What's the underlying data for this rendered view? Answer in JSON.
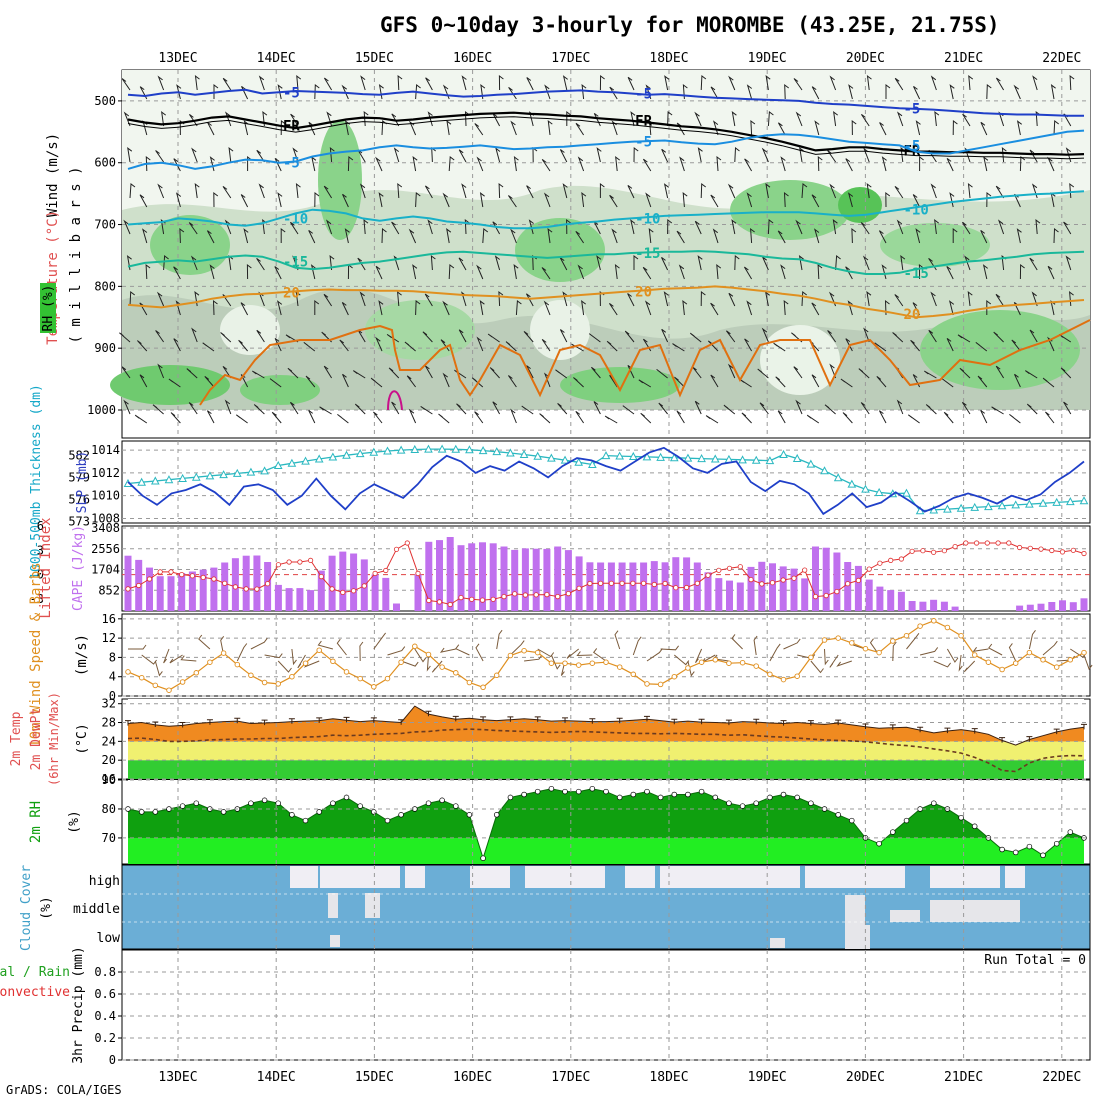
{
  "header": {
    "title": "GFS 0~10day 3-hourly for MOROMBE (43.25E, 21.75S)",
    "footer": "GrADS: COLA/IGES"
  },
  "chart_data": {
    "type": "line",
    "days": [
      "13DEC",
      "14DEC",
      "15DEC",
      "16DEC",
      "17DEC",
      "18DEC",
      "19DEC",
      "20DEC",
      "21DEC",
      "22DEC"
    ],
    "panels": {
      "upper": {
        "ylabel_wind": "Wind (m/s)",
        "ylabel_temp": "Temperature (°C)",
        "ylabel_rh": "RH (%)",
        "ylabel_units": "( m i l l i b a r s )",
        "levels": [
          500,
          600,
          700,
          800,
          900,
          1000
        ],
        "ylim": [
          450,
          1000
        ],
        "fr_label": "FR",
        "isotherms": [
          {
            "label": "-5",
            "color": "#1f3fc8",
            "values": [
              490,
              492,
              488,
              486,
              490,
              487,
              484,
              482,
              488,
              486,
              484,
              485,
              486,
              487,
              489,
              490,
              487,
              485,
              488,
              491,
              493,
              492,
              490,
              489,
              487,
              485,
              484,
              483,
              485,
              486,
              488,
              490,
              489,
              491,
              493,
              495,
              496,
              497,
              498,
              499,
              500,
              503,
              505,
              506,
              508,
              510,
              512,
              513,
              514,
              516,
              518,
              520,
              521,
              522,
              522,
              523,
              524,
              524
            ]
          },
          {
            "label": "FR",
            "color": "#000000",
            "values": [
              530,
              535,
              538,
              536,
              532,
              527,
              525,
              530,
              535,
              540,
              544,
              540,
              535,
              530,
              527,
              528,
              532,
              530,
              527,
              525,
              523,
              521,
              520,
              519,
              521,
              522,
              524,
              525,
              528,
              530,
              532,
              535,
              538,
              541,
              543,
              546,
              550,
              555,
              560,
              566,
              573,
              580,
              578,
              575,
              575,
              578,
              580,
              582,
              582,
              583,
              583,
              584,
              584,
              585,
              586,
              586,
              587,
              586
            ]
          },
          {
            "label": "-5",
            "color": "#1a8ee0",
            "values": [
              610,
              602,
              600,
              604,
              610,
              606,
              600,
              595,
              596,
              600,
              598,
              590,
              585,
              582,
              580,
              575,
              572,
              575,
              577,
              576,
              574,
              572,
              575,
              578,
              577,
              575,
              574,
              572,
              570,
              568,
              566,
              565,
              564,
              567,
              569,
              570,
              566,
              560,
              556,
              554,
              555,
              558,
              562,
              566,
              568,
              570,
              572,
              582,
              585,
              585,
              580,
              575,
              570,
              565,
              560,
              555,
              550,
              548
            ]
          },
          {
            "label": "-10",
            "color": "#19b0c8",
            "values": [
              700,
              698,
              696,
              690,
              692,
              695,
              700,
              702,
              698,
              690,
              682,
              676,
              678,
              682,
              690,
              694,
              690,
              687,
              690,
              695,
              697,
              700,
              704,
              706,
              706,
              704,
              700,
              697,
              695,
              692,
              690,
              688,
              686,
              685,
              684,
              683,
              682,
              681,
              680,
              680,
              680,
              682,
              684,
              686,
              684,
              680,
              676,
              672,
              668,
              664,
              661,
              658,
              655,
              653,
              651,
              650,
              648,
              646
            ]
          },
          {
            "label": "-15",
            "color": "#1ab89a",
            "values": [
              768,
              762,
              760,
              758,
              760,
              756,
              752,
              750,
              752,
              760,
              770,
              772,
              770,
              766,
              762,
              760,
              756,
              752,
              748,
              745,
              744,
              746,
              748,
              750,
              752,
              754,
              752,
              750,
              748,
              748,
              746,
              745,
              744,
              744,
              743,
              744,
              746,
              748,
              752,
              755,
              756,
              762,
              770,
              776,
              780,
              780,
              778,
              772,
              768,
              764,
              760,
              758,
              755,
              752,
              748,
              746,
              745,
              744
            ]
          },
          {
            "label": "20",
            "color": "#e09020",
            "values": [
              830,
              832,
              834,
              830,
              826,
              820,
              816,
              813,
              812,
              810,
              808,
              806,
              805,
              806,
              806,
              807,
              807,
              808,
              810,
              812,
              814,
              815,
              816,
              818,
              820,
              818,
              816,
              814,
              812,
              810,
              808,
              806,
              804,
              803,
              802,
              800,
              802,
              805,
              808,
              812,
              815,
              820,
              826,
              830,
              836,
              840,
              845,
              850,
              848,
              845,
              840,
              836,
              832,
              830,
              828,
              826,
              824,
              822
            ]
          }
        ]
      },
      "slp": {
        "ylabel_left": "1000-500mb Thickness (dm)",
        "ylabel_right": "SLP (mb)",
        "thickness_ticks": [
          573,
          576,
          579,
          582
        ],
        "slp_ticks": [
          1008,
          1010,
          1012,
          1014
        ],
        "slp_ylim": [
          1007.6,
          1014.8
        ],
        "thickness_ylim": [
          572.8,
          584
        ],
        "slp": [
          1011.2,
          1010.0,
          1009.2,
          1010.2,
          1010.5,
          1011.0,
          1010.3,
          1009.2,
          1010.8,
          1011.0,
          1010.5,
          1009.2,
          1010.0,
          1011.5,
          1010.0,
          1008.8,
          1010.2,
          1011.0,
          1010.4,
          1009.8,
          1011.0,
          1012.5,
          1013.5,
          1013.0,
          1012.0,
          1012.6,
          1012.2,
          1013.0,
          1012.4,
          1011.6,
          1012.6,
          1013.3,
          1013.1,
          1012.6,
          1012.2,
          1013.0,
          1013.8,
          1014.2,
          1013.4,
          1012.4,
          1012.0,
          1012.8,
          1013.0,
          1011.2,
          1010.4,
          1011.3,
          1011.0,
          1010.2,
          1008.4,
          1009.2,
          1010.2,
          1009.0,
          1009.4,
          1010.3,
          1009.5,
          1008.6,
          1009.1,
          1009.8,
          1010.2,
          1009.8,
          1009.3,
          1010.0,
          1009.6,
          1010.1,
          1011.2,
          1012.0,
          1013.0
        ]
      },
      "cape": {
        "ylabel_left": "Lifted Index",
        "ylabel_right": "CAPE (J/kg)",
        "li_ticks": [
          -3,
          0,
          3,
          6
        ],
        "cape_ticks": [
          852,
          1704,
          2556,
          3408
        ],
        "cape_max": 3408,
        "cape": [
          2270,
          2100,
          1780,
          1430,
          1430,
          1560,
          1620,
          1700,
          1780,
          1990,
          2170,
          2270,
          2280,
          2010,
          1070,
          940,
          940,
          860,
          1660,
          2270,
          2440,
          2360,
          2120,
          1500,
          1360,
          310,
          0,
          1500,
          2840,
          2910,
          3040,
          2700,
          2780,
          2820,
          2780,
          2650,
          2510,
          2570,
          2560,
          2550,
          2650,
          2500,
          2240,
          2000,
          1990,
          1990,
          1990,
          1990,
          1990,
          2050,
          2000,
          2210,
          2200,
          1990,
          1590,
          1350,
          1250,
          1170,
          1810,
          2020,
          1960,
          1830,
          1740,
          1340,
          2650,
          2600,
          2400,
          2010,
          1850,
          1290,
          1000,
          860,
          790,
          410,
          380,
          460,
          380,
          180,
          0,
          0,
          0,
          0,
          0,
          220,
          260,
          300,
          370,
          440,
          360,
          520
        ]
      },
      "wind": {
        "ylabel_main": "10m Wind Speed & Barbs",
        "ylabel_units": "(m/s)",
        "ticks": [
          0,
          4,
          8,
          12,
          16
        ],
        "ylim": [
          0,
          17
        ],
        "speed": [
          5.0,
          3.8,
          2.2,
          1.2,
          2.9,
          4.8,
          7.0,
          8.9,
          6.5,
          4.3,
          2.8,
          2.5,
          4.0,
          6.8,
          9.5,
          7.2,
          5.0,
          3.6,
          1.9,
          3.6,
          7.0,
          10.3,
          8.6,
          6.0,
          4.8,
          2.8,
          1.8,
          4.3,
          8.4,
          9.4,
          9.0,
          6.8,
          6.8,
          6.4,
          6.8,
          7.0,
          6.0,
          4.5,
          2.5,
          2.4,
          4.0,
          5.8,
          7.0,
          7.5,
          6.8,
          6.9,
          6.2,
          4.5,
          3.4,
          4.1,
          8.0,
          11.6,
          12.0,
          11.0,
          9.8,
          9.0,
          11.4,
          12.5,
          14.5,
          15.6,
          14.2,
          12.5,
          8.5,
          7.0,
          5.5,
          6.8,
          9.0,
          7.5,
          6.0,
          7.5,
          9.0
        ]
      },
      "temp": {
        "ylabel_main": "2m Temp",
        "ylabel_sub1": "2m DewPt",
        "ylabel_sub2": "(6hr Min/Max)",
        "ylabel_units": "(°C)",
        "ticks": [
          16,
          20,
          24,
          28,
          32
        ],
        "ylim": [
          16,
          33
        ],
        "temp": [
          27.8,
          28.0,
          27.5,
          27.2,
          27.4,
          27.8,
          28.0,
          28.2,
          28.3,
          27.8,
          27.9,
          28.0,
          28.2,
          28.3,
          28.4,
          28.8,
          28.5,
          28.2,
          28.4,
          28.2,
          28.0,
          31.5,
          29.8,
          29.2,
          28.7,
          28.9,
          28.6,
          28.4,
          28.6,
          28.8,
          28.6,
          28.3,
          28.4,
          28.3,
          28.2,
          28.2,
          28.3,
          28.5,
          28.7,
          28.4,
          28.1,
          28.3,
          28.1,
          28.0,
          27.9,
          28.2,
          28.1,
          27.9,
          27.8,
          28.0,
          27.8,
          27.6,
          27.9,
          27.5,
          27.1,
          26.8,
          26.9,
          27.0,
          26.4,
          25.8,
          26.2,
          26.5,
          26.1,
          25.5,
          24.2,
          23.2,
          24.4,
          25.2,
          26.0,
          26.6,
          27.0
        ],
        "dew": [
          24.6,
          24.7,
          24.4,
          24.0,
          24.0,
          24.1,
          24.3,
          24.4,
          24.5,
          24.5,
          24.6,
          24.6,
          24.8,
          24.9,
          25.0,
          25.3,
          25.2,
          25.3,
          25.5,
          25.6,
          25.7,
          26.0,
          26.1,
          26.4,
          26.5,
          26.6,
          26.5,
          26.3,
          26.2,
          26.1,
          26.0,
          25.9,
          26.0,
          26.1,
          26.0,
          25.9,
          25.8,
          25.7,
          25.7,
          25.6,
          25.7,
          25.6,
          25.5,
          25.5,
          25.3,
          25.4,
          25.2,
          25.0,
          24.9,
          24.7,
          24.5,
          24.3,
          24.2,
          24.1,
          23.9,
          23.6,
          23.3,
          23.1,
          22.8,
          22.4,
          22.0,
          21.5,
          20.6,
          19.4,
          17.8,
          17.6,
          19.4,
          20.4,
          20.8,
          21.0,
          20.9
        ]
      },
      "rh": {
        "ylabel_main": "2m RH",
        "ylabel_units": "(%)",
        "ticks": [
          70,
          80,
          90
        ],
        "ylim": [
          61,
          90
        ],
        "values": [
          80,
          79,
          79,
          80,
          81,
          82,
          80,
          79,
          80,
          82,
          83,
          82,
          78,
          76,
          79,
          82,
          84,
          81,
          79,
          76,
          78,
          80,
          82,
          83,
          81,
          78,
          63,
          78,
          84,
          85,
          86,
          87,
          86,
          86,
          87,
          86,
          84,
          85,
          86,
          84,
          85,
          85,
          86,
          84,
          82,
          81,
          82,
          84,
          85,
          84,
          82,
          80,
          78,
          76,
          70,
          68,
          72,
          76,
          80,
          82,
          80,
          77,
          74,
          70,
          66,
          65,
          67,
          64,
          68,
          72,
          70
        ]
      },
      "cloud": {
        "ylabel_main": "Cloud Cover",
        "ylabel_units": "(%)",
        "labels": [
          "high",
          "middle",
          "low"
        ]
      },
      "precip": {
        "ylabel_left": "Total / Rain",
        "ylabel_left2": "Convective",
        "ylabel_main": "3hr Precip (mm)",
        "ticks": [
          "0",
          "0.2",
          "0.4",
          "0.6",
          "0.8"
        ],
        "tick_values": [
          0,
          0.2,
          0.4,
          0.6,
          0.8
        ],
        "ylim": [
          0,
          1
        ],
        "run_total": "Run Total = 0"
      }
    }
  }
}
